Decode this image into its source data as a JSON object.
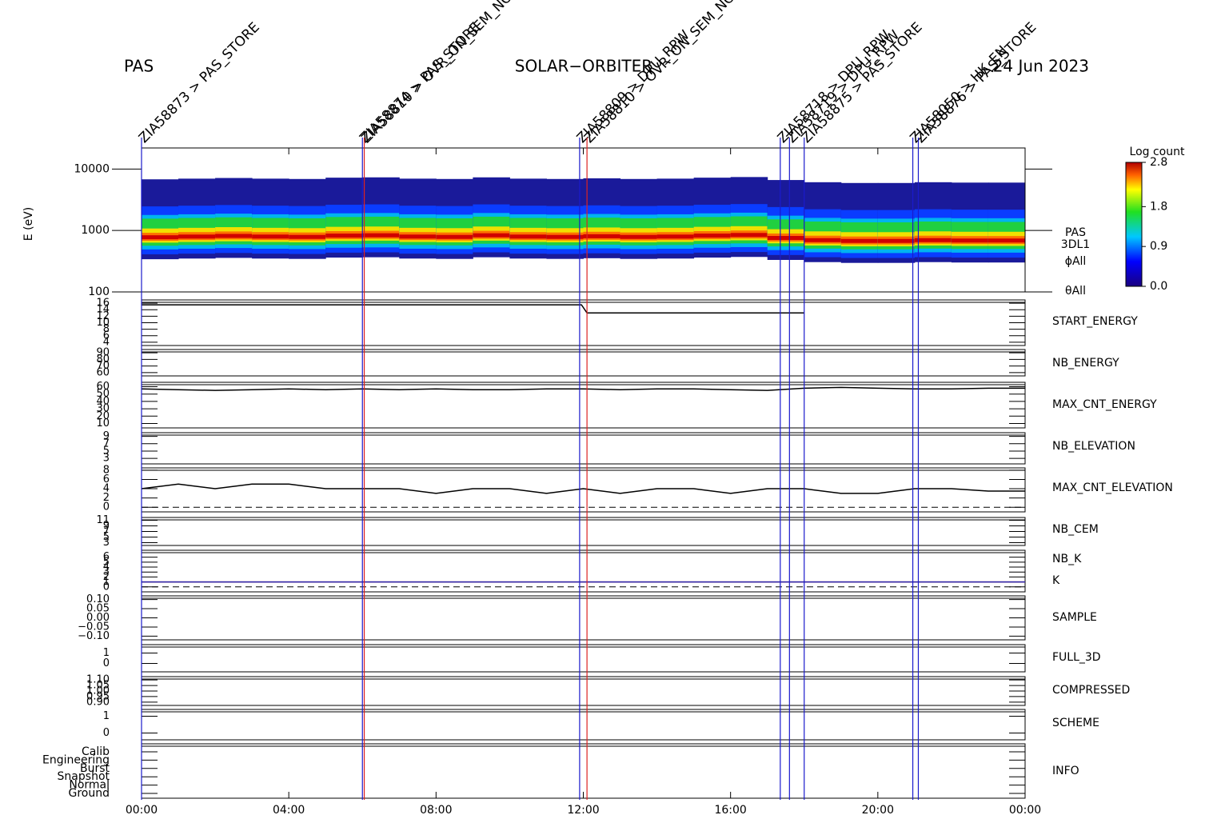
{
  "header": {
    "instrument": "PAS",
    "mission": "SOLAR−ORBITER",
    "date": "24 Jun 2023"
  },
  "time_axis": {
    "xlim": [
      0,
      24
    ],
    "xticks": [
      {
        "value": 0,
        "label": "00:00"
      },
      {
        "value": 4,
        "label": "04:00"
      },
      {
        "value": 8,
        "label": "08:00"
      },
      {
        "value": 12,
        "label": "12:00"
      },
      {
        "value": 16,
        "label": "16:00"
      },
      {
        "value": 20,
        "label": "20:00"
      },
      {
        "value": 24,
        "label": "00:00"
      }
    ]
  },
  "events": [
    {
      "x": 0,
      "label": "ZIA58873 > PAS_STORE",
      "color": "#1a1acc"
    },
    {
      "x": 6,
      "label": "ZIA58874 > PAS_STORE",
      "color": "#1a1acc"
    },
    {
      "x": 6.05,
      "label": "ZIA58810 > OVR_ON_SEM_NOT",
      "color": "#dd2222"
    },
    {
      "x": 11.9,
      "label": "ZIA58809 > DPU_RPW",
      "color": "#1a1acc"
    },
    {
      "x": 12.1,
      "label": "ZIA58810 > OVR_ON_SEM_NOT",
      "color": "#dd2222"
    },
    {
      "x": 17.35,
      "label": "ZIA58718 > DPU_RPW",
      "color": "#1a1acc"
    },
    {
      "x": 17.6,
      "label": "ZIA58719 > DPU_RPW",
      "color": "#1a1acc"
    },
    {
      "x": 18,
      "label": "ZIA58875 > PAS_STORE",
      "color": "#1a1acc"
    },
    {
      "x": 20.95,
      "label": "ZIA58050 > HK_EN",
      "color": "#1a1acc"
    },
    {
      "x": 21.1,
      "label": "ZIA58876 > PAS_STORE",
      "color": "#1a1acc"
    }
  ],
  "chart_data": [
    {
      "type": "spectrogram",
      "ylabel": "E (eV)",
      "log_y": true,
      "ylim": [
        100,
        22000
      ],
      "yticks": [
        100,
        1000,
        10000
      ],
      "labels": [
        "PAS",
        "3DL1",
        "ϕAll",
        "θAll"
      ],
      "x": [
        0,
        1,
        2,
        3,
        4,
        5,
        6,
        7,
        8,
        9,
        10,
        11,
        12,
        13,
        14,
        15,
        16,
        17,
        18,
        19,
        20,
        21,
        22,
        23
      ],
      "values": [
        780,
        800,
        820,
        800,
        790,
        830,
        840,
        800,
        790,
        840,
        800,
        790,
        810,
        790,
        800,
        830,
        850,
        760,
        700,
        680,
        680,
        700,
        690,
        690
      ],
      "colorbar": {
        "title": "Log count",
        "lim": [
          0,
          2.8
        ],
        "ticks": [
          {
            "value": 0,
            "label": "0.0"
          },
          0.9,
          1.8,
          2.8
        ]
      }
    },
    {
      "type": "line",
      "ylim": [
        3,
        17
      ],
      "yticks": [
        16,
        14,
        12,
        10,
        8,
        6,
        4
      ],
      "series": [
        {
          "name": "START_ENERGY",
          "color": "#000000",
          "x": [
            0,
            11.95,
            12.1,
            18
          ],
          "values": [
            15.5,
            15.5,
            13,
            13
          ]
        }
      ]
    },
    {
      "type": "line",
      "ylim": [
        55,
        95
      ],
      "yticks": [
        90,
        80,
        70,
        60
      ],
      "series": [
        {
          "name": "NB_ENERGY",
          "color": "#2a2ab0",
          "x": [],
          "values": []
        }
      ]
    },
    {
      "type": "line",
      "ylim": [
        4,
        66
      ],
      "yticks": [
        60,
        50,
        40,
        30,
        20,
        10
      ],
      "series": [
        {
          "name": "MAX_CNT_ENERGY",
          "color": "#000000",
          "x": [
            0,
            1,
            2,
            3,
            4,
            5,
            6,
            7,
            8,
            9,
            10,
            11,
            12,
            13,
            14,
            15,
            16,
            17,
            18,
            19,
            20,
            21,
            22,
            23,
            24
          ],
          "values": [
            57,
            56,
            55,
            56,
            57,
            56,
            57,
            56,
            57,
            56,
            56,
            57,
            57,
            56,
            57,
            57,
            56,
            55,
            58,
            59,
            58,
            57,
            57,
            58,
            58
          ]
        }
      ]
    },
    {
      "type": "line",
      "ylim": [
        1.5,
        10
      ],
      "yticks": [
        9,
        7,
        5,
        3
      ],
      "series": [
        {
          "name": "NB_ELEVATION",
          "color": "#2a2ab0",
          "x": [],
          "values": []
        }
      ]
    },
    {
      "type": "line",
      "ylim": [
        -1,
        8.5
      ],
      "yticks": [
        8,
        6,
        4,
        2,
        0
      ],
      "reference_line": 0,
      "series": [
        {
          "name": "MAX_CNT_ELEVATION",
          "color": "#000000",
          "x": [
            0,
            1,
            2,
            3,
            4,
            5,
            6,
            7,
            8,
            9,
            10,
            11,
            12,
            13,
            14,
            15,
            16,
            17,
            18,
            19,
            20,
            21,
            22,
            23,
            24
          ],
          "values": [
            4,
            5,
            4,
            5,
            5,
            4,
            4,
            4,
            3,
            4,
            4,
            3,
            4,
            3,
            4,
            4,
            3,
            4,
            4,
            3,
            3,
            4,
            4,
            3.5,
            3.5
          ]
        }
      ]
    },
    {
      "type": "line",
      "ylim": [
        2,
        12
      ],
      "yticks": [
        11,
        9,
        7,
        5,
        3
      ],
      "series": [
        {
          "name": "NB_CEM",
          "color": "#2a2ab0",
          "x": [],
          "values": []
        }
      ]
    },
    {
      "type": "line",
      "ylim": [
        -1,
        7.4
      ],
      "yticks": [
        6,
        5,
        4,
        3,
        2,
        1,
        0
      ],
      "reference_line": 0,
      "series": [
        {
          "name": "NB_K",
          "color": "#dd2222",
          "x": [
            0,
            24
          ],
          "values": [
            1,
            1
          ]
        },
        {
          "name": "K",
          "color": "#2a2ab0",
          "x": [
            0,
            24
          ],
          "values": [
            1,
            1
          ]
        }
      ]
    },
    {
      "type": "line",
      "ylim": [
        -0.12,
        0.12
      ],
      "yticks": [
        {
          "value": 0.1,
          "label": "0.10"
        },
        0.05,
        {
          "value": 0,
          "label": "0.00"
        },
        {
          "value": -0.05,
          "label": "−0.05"
        },
        {
          "value": -0.1,
          "label": "−0.10"
        }
      ],
      "series": [
        {
          "name": "SAMPLE",
          "color": "#2a2ab0",
          "x": [],
          "values": []
        }
      ]
    },
    {
      "type": "line",
      "ylim": [
        -0.8,
        1.8
      ],
      "yticks": [
        1,
        0
      ],
      "series": [
        {
          "name": "FULL_3D",
          "color": "#2a2ab0",
          "x": [],
          "values": []
        }
      ]
    },
    {
      "type": "line",
      "ylim": [
        0.87,
        1.13
      ],
      "yticks": [
        {
          "value": 1.1,
          "label": "1.10"
        },
        1.05,
        {
          "value": 1,
          "label": "1.00"
        },
        0.95,
        {
          "value": 0.9,
          "label": "0.90"
        }
      ],
      "series": [
        {
          "name": "COMPRESSED",
          "color": "#000000",
          "x": [],
          "values": []
        }
      ]
    },
    {
      "type": "line",
      "ylim": [
        -0.4,
        1.4
      ],
      "yticks": [
        1,
        0
      ],
      "series": [
        {
          "name": "SCHEME",
          "color": "#000000",
          "x": [],
          "values": []
        }
      ]
    },
    {
      "type": "category",
      "categories": [
        "Calib",
        "Engineering",
        "Burst",
        "Snapshot",
        "Normal",
        "Ground"
      ],
      "series": [
        {
          "name": "INFO",
          "color": "#000000",
          "x": [],
          "values": []
        }
      ]
    }
  ]
}
